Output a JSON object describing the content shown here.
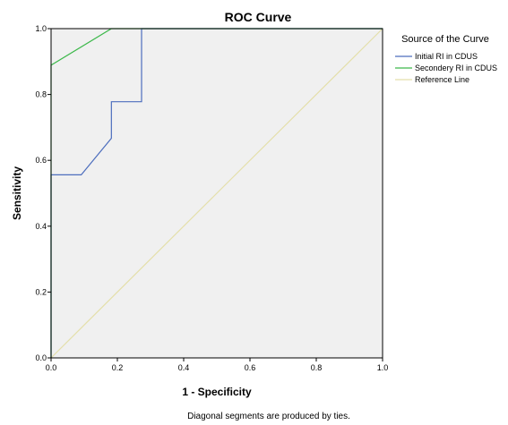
{
  "chart_data": {
    "type": "line",
    "title": "ROC Curve",
    "xlabel": "1 - Specificity",
    "ylabel": "Sensitivity",
    "xlim": [
      0,
      1
    ],
    "ylim": [
      0,
      1
    ],
    "x_ticks": [
      "0.0",
      "0.2",
      "0.4",
      "0.6",
      "0.8",
      "1.0"
    ],
    "y_ticks": [
      "0.0",
      "0.2",
      "0.4",
      "0.6",
      "0.8",
      "1.0"
    ],
    "grid": false,
    "background_color": "#f0f0f0",
    "legend": {
      "title": "Source of the Curve",
      "placement": "right"
    },
    "series": [
      {
        "name": "Initial RI in CDUS",
        "color": "#4d6ebd",
        "x": [
          0.0,
          0.0,
          0.091,
          0.182,
          0.182,
          0.273,
          0.273,
          1.0
        ],
        "y": [
          0.0,
          0.556,
          0.556,
          0.667,
          0.778,
          0.778,
          1.0,
          1.0
        ]
      },
      {
        "name": "Secondery RI in CDUS",
        "color": "#3cb84a",
        "x": [
          0.0,
          0.0,
          0.182,
          1.0
        ],
        "y": [
          0.0,
          0.889,
          1.0,
          1.0
        ]
      },
      {
        "name": "Reference Line",
        "color": "#e4dfaa",
        "x": [
          0.0,
          1.0
        ],
        "y": [
          0.0,
          1.0
        ]
      }
    ],
    "footnote": "Diagonal segments are produced by ties."
  }
}
